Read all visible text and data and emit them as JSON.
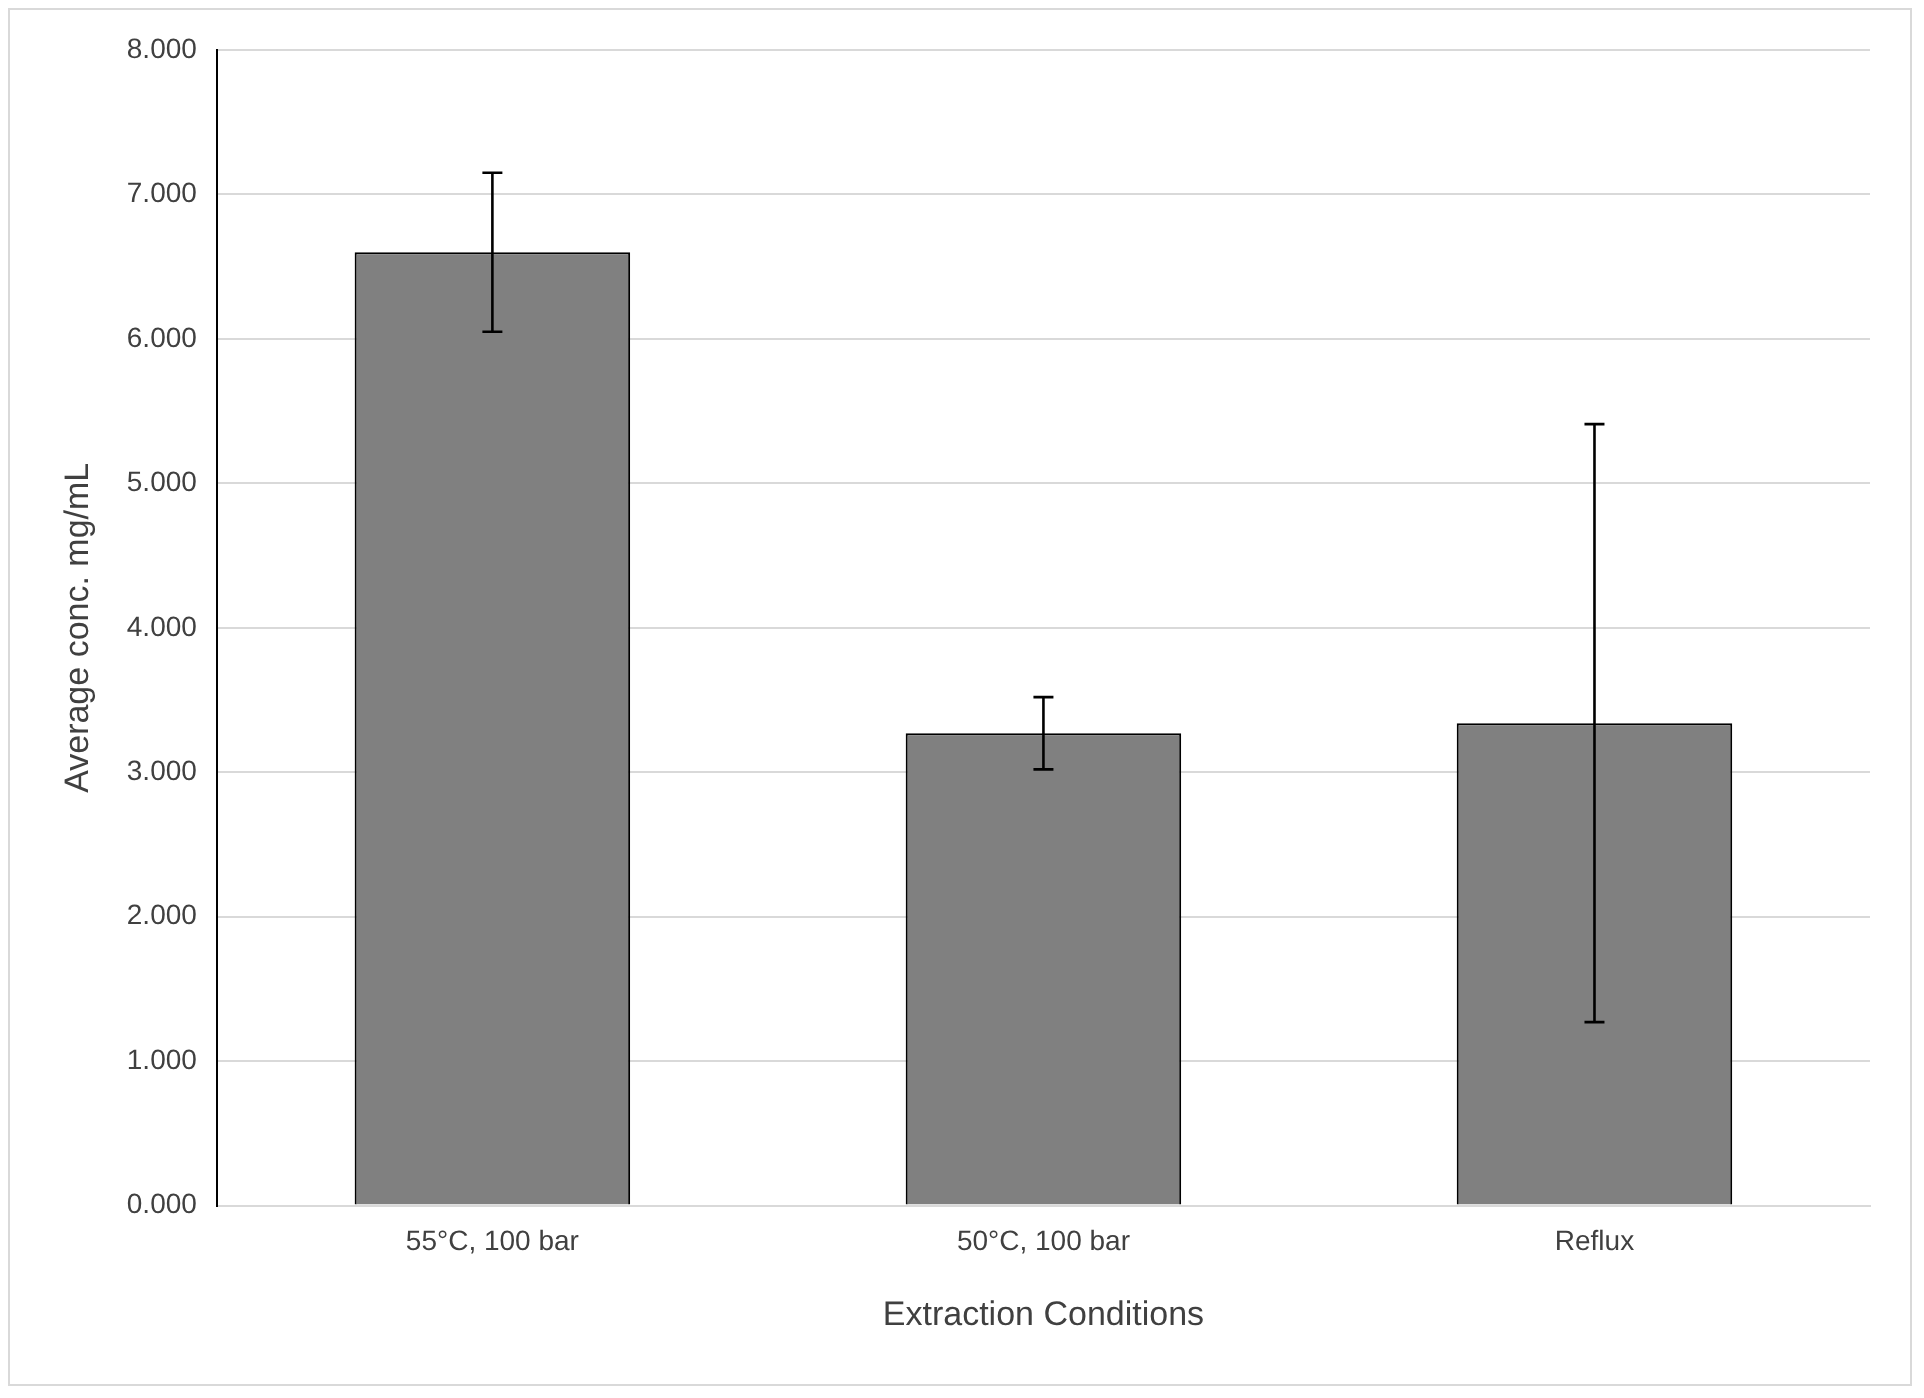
{
  "chart_data": {
    "type": "bar",
    "xlabel": "Extraction Conditions",
    "ylabel": "Average conc. mg/mL",
    "categories": [
      "55°C, 100 bar",
      "50°C, 100 bar",
      "Reflux"
    ],
    "values": [
      6.6,
      3.27,
      3.34
    ],
    "errors": [
      0.55,
      0.25,
      2.07
    ],
    "color": "#808080",
    "ylim": [
      0,
      8
    ],
    "yticks": [
      {
        "value": 0,
        "label": "0.000"
      },
      {
        "value": 1,
        "label": "1.000"
      },
      {
        "value": 2,
        "label": "2.000"
      },
      {
        "value": 3,
        "label": "3.000"
      },
      {
        "value": 4,
        "label": "4.000"
      },
      {
        "value": 5,
        "label": "5.000"
      },
      {
        "value": 6,
        "label": "6.000"
      },
      {
        "value": 7,
        "label": "7.000"
      },
      {
        "value": 8,
        "label": "8.000"
      }
    ],
    "grid": "y",
    "legend": false
  }
}
